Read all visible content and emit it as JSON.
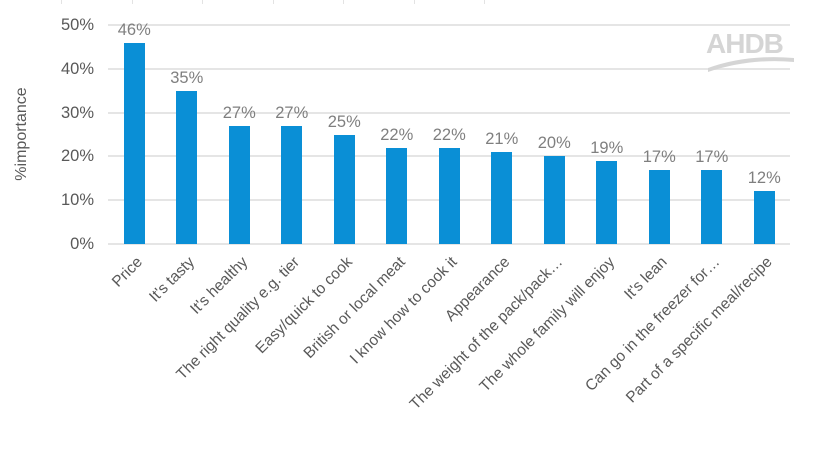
{
  "chart_data": {
    "type": "bar",
    "title": "",
    "xlabel": "",
    "ylabel": "%importance",
    "ylim": [
      0,
      50
    ],
    "yticks": [
      "0%",
      "10%",
      "20%",
      "30%",
      "40%",
      "50%"
    ],
    "grid": true,
    "legend": null,
    "categories": [
      "Price",
      "It's tasty",
      "It's healthy",
      "The right quality e.g. tier",
      "Easy/quick to cook",
      "British or local meat",
      "I know how to cook it",
      "Appearance",
      "The weight of the pack/pack…",
      "The whole family will enjoy",
      "It's lean",
      "Can go in the freezer for…",
      "Part of a specific meal/recipe"
    ],
    "values": [
      46,
      35,
      27,
      27,
      25,
      22,
      22,
      21,
      20,
      19,
      17,
      17,
      12
    ],
    "value_labels": [
      "46%",
      "35%",
      "27%",
      "27%",
      "25%",
      "22%",
      "22%",
      "21%",
      "20%",
      "19%",
      "17%",
      "17%",
      "12%"
    ],
    "bar_color": "#0a8fd6"
  },
  "logo": {
    "text": "AHDB"
  }
}
